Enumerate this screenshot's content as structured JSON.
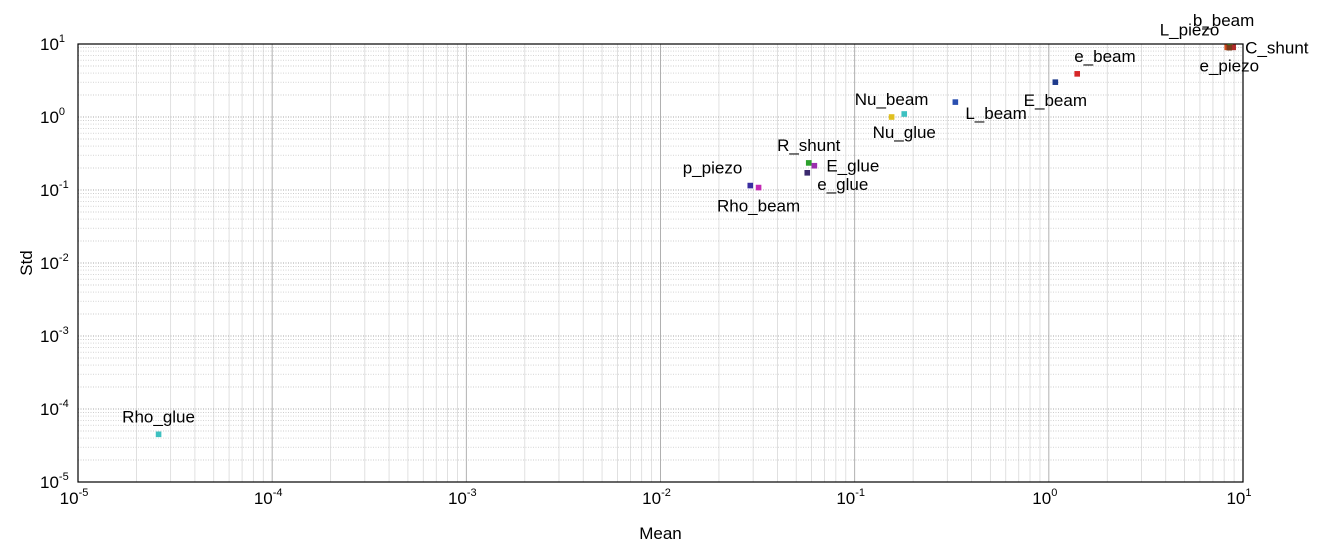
{
  "chart_data": {
    "type": "scatter",
    "title": "",
    "xlabel": "Mean",
    "ylabel": "Std",
    "xscale": "log",
    "yscale": "log",
    "xlim": [
      1e-05,
      10
    ],
    "ylim": [
      1e-05,
      10
    ],
    "grid": true,
    "x_ticks": [
      {
        "base": "10",
        "exp": "-5",
        "value": 1e-05
      },
      {
        "base": "10",
        "exp": "-4",
        "value": 0.0001
      },
      {
        "base": "10",
        "exp": "-3",
        "value": 0.001
      },
      {
        "base": "10",
        "exp": "-2",
        "value": 0.01
      },
      {
        "base": "10",
        "exp": "-1",
        "value": 0.1
      },
      {
        "base": "10",
        "exp": "0",
        "value": 1
      },
      {
        "base": "10",
        "exp": "1",
        "value": 10
      }
    ],
    "y_ticks": [
      {
        "base": "10",
        "exp": "-5",
        "value": 1e-05
      },
      {
        "base": "10",
        "exp": "-4",
        "value": 0.0001
      },
      {
        "base": "10",
        "exp": "-3",
        "value": 0.001
      },
      {
        "base": "10",
        "exp": "-2",
        "value": 0.01
      },
      {
        "base": "10",
        "exp": "-1",
        "value": 0.1
      },
      {
        "base": "10",
        "exp": "0",
        "value": 1
      },
      {
        "base": "10",
        "exp": "1",
        "value": 10
      }
    ],
    "points": [
      {
        "label": "Rho_glue",
        "x": 2.6e-05,
        "y": 4.5e-05,
        "color": "#3ec1c1",
        "anchor": "above"
      },
      {
        "label": "p_piezo",
        "x": 0.029,
        "y": 0.115,
        "color": "#3a2ea0",
        "anchor": "above-left"
      },
      {
        "label": "Rho_beam",
        "x": 0.032,
        "y": 0.108,
        "color": "#c42ab4",
        "anchor": "below"
      },
      {
        "label": "R_shunt",
        "x": 0.058,
        "y": 0.235,
        "color": "#2ca02c",
        "anchor": "above"
      },
      {
        "label": "E_glue",
        "x": 0.062,
        "y": 0.215,
        "color": "#9b2fae",
        "anchor": "right"
      },
      {
        "label": "e_glue",
        "x": 0.057,
        "y": 0.172,
        "color": "#3b2a6e",
        "anchor": "right-below"
      },
      {
        "label": "Nu_beam",
        "x": 0.155,
        "y": 1.0,
        "color": "#e0c020",
        "anchor": "above"
      },
      {
        "label": "Nu_glue",
        "x": 0.18,
        "y": 1.1,
        "color": "#3ec1c1",
        "anchor": "below"
      },
      {
        "label": "L_beam",
        "x": 0.33,
        "y": 1.6,
        "color": "#2a4fb0",
        "anchor": "right-below"
      },
      {
        "label": "E_beam",
        "x": 1.08,
        "y": 3.0,
        "color": "#1f3b8c",
        "anchor": "below"
      },
      {
        "label": "e_beam",
        "x": 1.4,
        "y": 3.9,
        "color": "#d62728",
        "anchor": "above-right"
      },
      {
        "label": "L_piezo",
        "x": 8.3,
        "y": 9.0,
        "color": "#d64a1a",
        "anchor": "above-left"
      },
      {
        "label": "b_beam",
        "x": 8.6,
        "y": 9.1,
        "color": "#2ca02c",
        "anchor": "above-high"
      },
      {
        "label": "C_shunt",
        "x": 8.9,
        "y": 9.0,
        "color": "#b02a2a",
        "anchor": "right"
      },
      {
        "label": "e_piezo",
        "x": 8.5,
        "y": 8.9,
        "color": "#7a3a1a",
        "anchor": "below"
      }
    ]
  }
}
